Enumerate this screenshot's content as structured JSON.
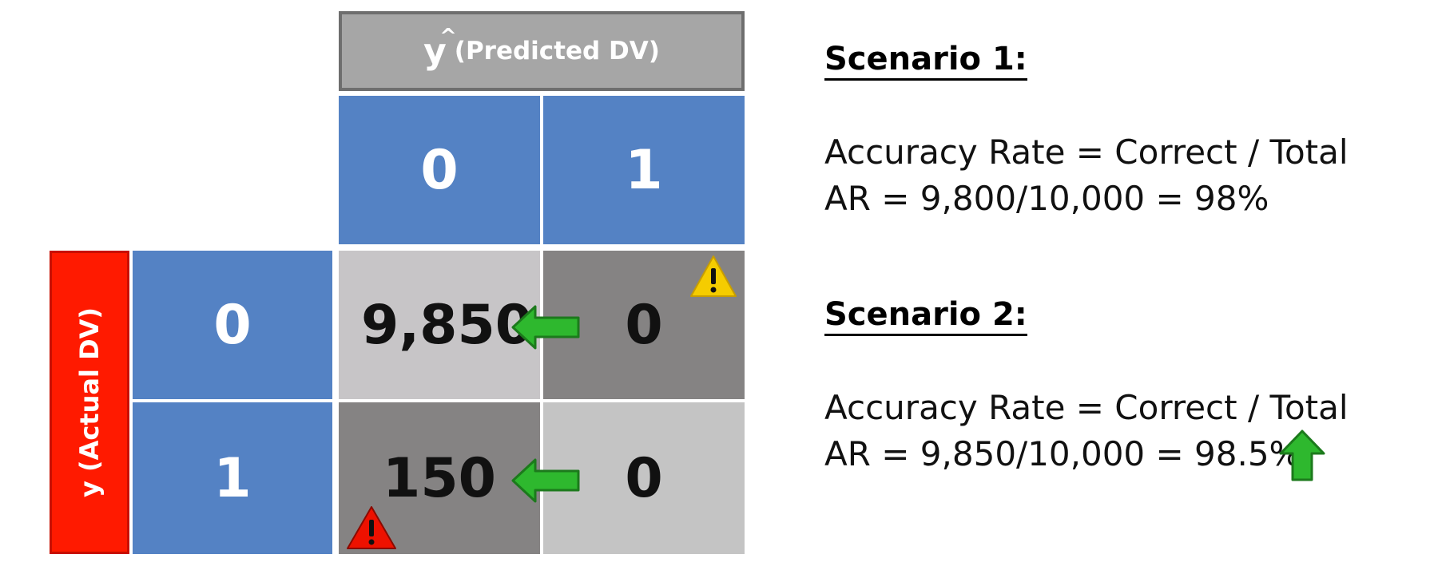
{
  "matrix": {
    "predicted_header": {
      "symbol": "y",
      "hat": "^",
      "label": "(Predicted DV)"
    },
    "actual_header": "y (Actual DV)",
    "col_labels": [
      "0",
      "1"
    ],
    "row_labels": [
      "0",
      "1"
    ],
    "cells": {
      "r0c0": "9,850",
      "r0c1": "0",
      "r1c0": "150",
      "r1c1": "0"
    },
    "colors": {
      "label_blue": "#5482c4",
      "actual_red": "#ff1a00",
      "arrow_green": "#2eb82e",
      "warning_yellow": "#f5cc00",
      "warning_red": "#ee1100"
    },
    "icons": [
      "warning-icon",
      "arrow-left-icon",
      "arrow-up-icon"
    ]
  },
  "scenarios": [
    {
      "title": "Scenario 1:",
      "line1": "Accuracy Rate = Correct / Total",
      "line2": "AR = 9,800/10,000 = 98%"
    },
    {
      "title": "Scenario 2:",
      "line1": "Accuracy Rate = Correct / Total",
      "line2": "AR = 9,850/10,000 = 98.5%"
    }
  ]
}
